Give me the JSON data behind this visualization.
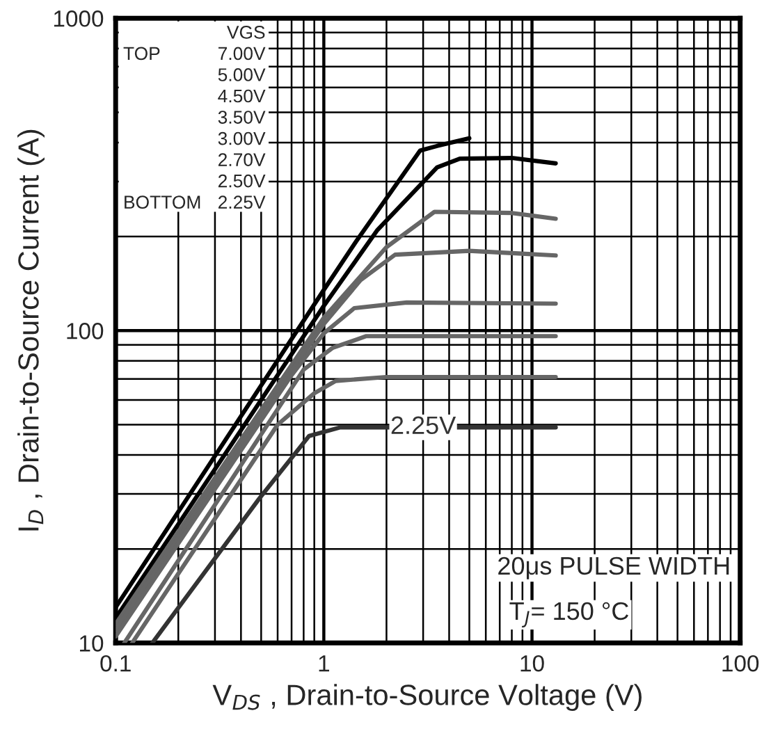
{
  "chart_data": {
    "type": "line",
    "xlabel": "V$_{DS}$ , Drain-to-Source Voltage (V)",
    "ylabel": "I$_{D}$ , Drain-to-Source Current (A)",
    "log": "xy",
    "xlim": [
      0.1,
      100
    ],
    "ylim": [
      10,
      1000
    ],
    "xticks": [
      0.1,
      1,
      10,
      100
    ],
    "yticks": [
      10,
      100,
      1000
    ],
    "grid": true,
    "marker": "none",
    "line_style": "solid",
    "series": [
      {
        "color": "#000000",
        "x": [
          0.1,
          1,
          1.43,
          2.9,
          3.5,
          5
        ],
        "values": [
          13,
          135,
          193,
          377,
          390,
          413
        ]
      },
      {
        "color": "#000000",
        "x": [
          0.1,
          1,
          1.81,
          3.5,
          4.5,
          8,
          13
        ],
        "values": [
          12,
          120,
          210,
          333,
          355,
          357,
          343
        ]
      },
      {
        "color": "#666666",
        "x": [
          0.1,
          1,
          2,
          3.4,
          8,
          13
        ],
        "values": [
          11.5,
          110,
          185,
          240,
          238,
          228
        ]
      },
      {
        "color": "#666666",
        "x": [
          0.1,
          1,
          1.5,
          2.2,
          5,
          13
        ],
        "values": [
          11,
          105,
          145,
          175,
          180,
          174
        ]
      },
      {
        "color": "#666666",
        "x": [
          0.1,
          0.7,
          1,
          1.4,
          2.5,
          13
        ],
        "values": [
          10.5,
          72,
          98,
          118,
          123,
          122
        ]
      },
      {
        "color": "#666666",
        "x": [
          0.11,
          0.8,
          1.1,
          1.6,
          13
        ],
        "values": [
          10,
          75,
          88,
          96,
          96
        ]
      },
      {
        "color": "#666666",
        "x": [
          0.12,
          0.6,
          0.9,
          1.14,
          2,
          13
        ],
        "values": [
          10,
          50,
          63,
          69,
          71,
          71
        ]
      },
      {
        "name": "2.25V",
        "color": "#333333",
        "x": [
          0.15,
          0.49,
          0.85,
          1.2,
          13
        ],
        "values": [
          10,
          29,
          46,
          49,
          49
        ]
      }
    ],
    "annotations": [
      "VGS",
      "TOP",
      "7.00V",
      "5.00V",
      "4.50V",
      "3.50V",
      "3.00V",
      "2.70V",
      "2.50V",
      "BOTTOM",
      "2.25V",
      "20μs PULSE WIDTH",
      "T$_{J}$= 150 °C"
    ]
  }
}
